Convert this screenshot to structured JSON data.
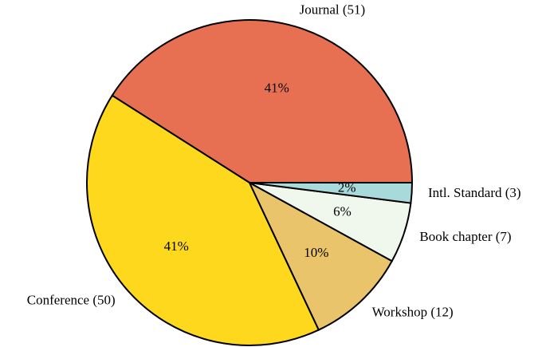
{
  "chart_data": {
    "type": "pie",
    "categories": [
      "Journal (51)",
      "Conference (50)",
      "Workshop (12)",
      "Book chapter (7)",
      "Intl. Standard (3)"
    ],
    "values": [
      41,
      41,
      10,
      6,
      2
    ],
    "value_labels": [
      "41%",
      "41%",
      "10%",
      "6%",
      "2%"
    ],
    "colors": [
      "#e87052",
      "#fdd81c",
      "#e9c46a",
      "#f0f8ee",
      "#a8dadc"
    ]
  }
}
